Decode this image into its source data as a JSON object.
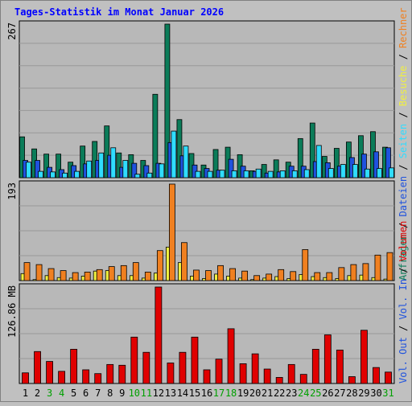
{
  "chart_data": {
    "type": "bar",
    "title": "Tages-Statistik im Monat Januar 2026",
    "categories": [
      "1",
      "2",
      "3",
      "4",
      "5",
      "6",
      "7",
      "8",
      "9",
      "10",
      "11",
      "12",
      "13",
      "14",
      "15",
      "16",
      "17",
      "18",
      "19",
      "20",
      "21",
      "22",
      "23",
      "24",
      "25",
      "26",
      "27",
      "28",
      "29",
      "30",
      "31"
    ],
    "weekend_days": [
      "3",
      "4",
      "10",
      "11",
      "17",
      "18",
      "24",
      "25",
      "31"
    ],
    "panels": [
      {
        "ylabel": "267",
        "ymax": 267,
        "series": [
          {
            "name": "Anfragen",
            "color": "#0b7c59",
            "values": [
              71,
              50,
              41,
              41,
              27,
              55,
              63,
              90,
              43,
              40,
              30,
              145,
              267,
              101,
              42,
              22,
              49,
              53,
              40,
              12,
              23,
              31,
              27,
              68,
              95,
              37,
              51,
              62,
              73,
              80,
              53
            ]
          },
          {
            "name": "Dateien",
            "color": "#1f52de",
            "values": [
              30,
              30,
              18,
              14,
              21,
              24,
              30,
              39,
              18,
              25,
              21,
              25,
              61,
              38,
              22,
              16,
              13,
              32,
              20,
              11,
              8,
              10,
              20,
              20,
              28,
              26,
              20,
              35,
              41,
              45,
              52
            ]
          },
          {
            "name": "Seiten",
            "color": "#30dcff",
            "values": [
              27,
              11,
              10,
              8,
              11,
              29,
              43,
              52,
              30,
              6,
              8,
              24,
              81,
              55,
              11,
              11,
              13,
              12,
              12,
              15,
              11,
              12,
              12,
              14,
              56,
              16,
              23,
              23,
              15,
              16,
              17
            ]
          }
        ]
      },
      {
        "ylabel": "193",
        "ymax": 193,
        "series": [
          {
            "name": "Besuche",
            "color": "#f0f040",
            "values": [
              14,
              2,
              10,
              6,
              5,
              9,
              19,
              20,
              10,
              10,
              5,
              15,
              67,
              36,
              9,
              4,
              13,
              9,
              5,
              2,
              5,
              8,
              4,
              12,
              8,
              6,
              4,
              10,
              11,
              6,
              3
            ]
          },
          {
            "name": "Rechner",
            "color": "#f08020",
            "values": [
              36,
              32,
              24,
              20,
              16,
              17,
              22,
              28,
              30,
              36,
              17,
              60,
              193,
              76,
              21,
              20,
              30,
              24,
              19,
              10,
              13,
              22,
              18,
              62,
              16,
              16,
              26,
              32,
              34,
              51,
              56
            ]
          }
        ]
      },
      {
        "ylabel": "126.86 MB",
        "ymax": 126.86,
        "series": [
          {
            "name": "Volumen",
            "color": "#e00000",
            "values": [
              14,
              42,
              29,
              16,
              45,
              18,
              13,
              25,
              24,
              61,
              41,
              126.86,
              27,
              41,
              61,
              18,
              32,
              72,
              26,
              39,
              19,
              8,
              25,
              12,
              45,
              64,
              44,
              9,
              70,
              21,
              15
            ]
          }
        ]
      }
    ],
    "right_legend": {
      "row1": [
        {
          "text": "Anfragen",
          "color": "#0b7c59"
        },
        {
          "text": "Dateien",
          "color": "#1f52de"
        },
        {
          "text": "Seiten",
          "color": "#30dcff"
        },
        {
          "text": "Besuche",
          "color": "#f0f040"
        },
        {
          "text": "Rechner",
          "color": "#f08020"
        }
      ],
      "row2": [
        {
          "text": "Vol. Out",
          "color": "#1f52de"
        },
        {
          "text": "Vol. In",
          "color": "#1f52de"
        },
        {
          "text": "Volumen",
          "color": "#e00000"
        }
      ],
      "separator": "/",
      "separator_color": "#000000"
    },
    "colors": {
      "background": "#c0c0c0",
      "plot_bg": "#b8b8b8",
      "title": "#0000ff",
      "weekday_label": "#000000",
      "weekend_label": "#00a000"
    }
  }
}
